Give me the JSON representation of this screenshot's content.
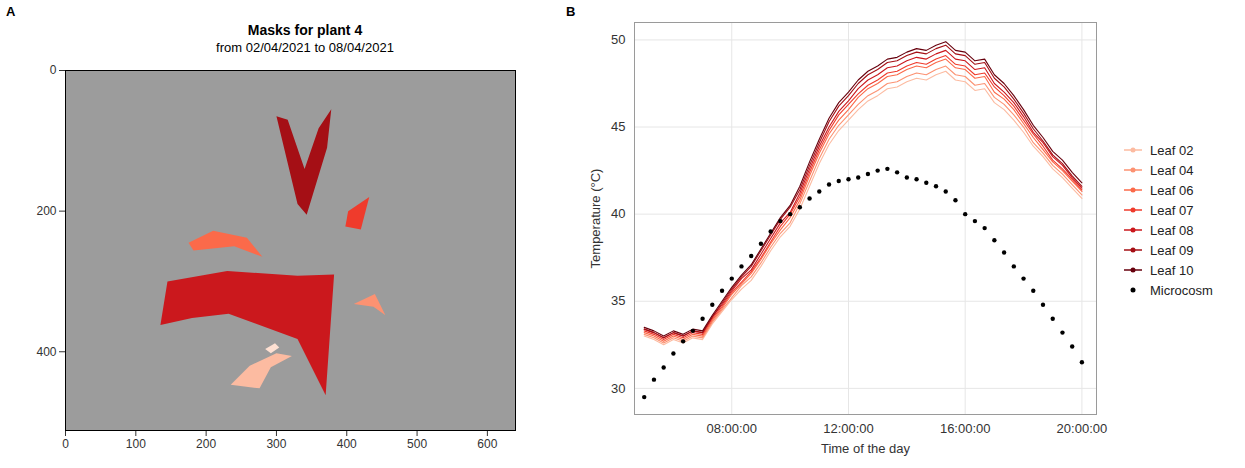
{
  "chart_data": [
    {
      "panel": "A",
      "type": "image",
      "title": "Masks for plant 4",
      "subtitle": "from 02/04/2021 to 08/04/2021",
      "xlim": [
        0,
        640
      ],
      "ylim": [
        512,
        0
      ],
      "xticks": [
        0,
        100,
        200,
        300,
        400,
        500,
        600
      ],
      "yticks": [
        0,
        200,
        400
      ],
      "masks": [
        {
          "color": "#a50f15",
          "points": [
            [
              300,
              65
            ],
            [
              316,
              70
            ],
            [
              340,
              140
            ],
            [
              360,
              82
            ],
            [
              378,
              55
            ],
            [
              372,
              110
            ],
            [
              343,
              205
            ],
            [
              330,
              190
            ]
          ]
        },
        {
          "color": "#ef3b2c",
          "points": [
            [
              402,
              200
            ],
            [
              432,
              180
            ],
            [
              420,
              226
            ],
            [
              398,
              222
            ]
          ]
        },
        {
          "color": "#fb6a4a",
          "points": [
            [
              175,
              245
            ],
            [
              210,
              228
            ],
            [
              258,
              238
            ],
            [
              280,
              265
            ],
            [
              240,
              250
            ],
            [
              182,
              256
            ]
          ]
        },
        {
          "color": "#cb181d",
          "points": [
            [
              135,
              362
            ],
            [
              145,
              300
            ],
            [
              230,
              285
            ],
            [
              330,
              292
            ],
            [
              382,
              290
            ],
            [
              370,
              462
            ],
            [
              330,
              382
            ],
            [
              232,
              346
            ],
            [
              180,
              352
            ]
          ]
        },
        {
          "color": "#fc9272",
          "points": [
            [
              410,
              332
            ],
            [
              440,
              318
            ],
            [
              455,
              348
            ],
            [
              438,
              336
            ]
          ]
        },
        {
          "color": "#fcbba1",
          "points": [
            [
              235,
              447
            ],
            [
              262,
              420
            ],
            [
              300,
              402
            ],
            [
              322,
              406
            ],
            [
              292,
              422
            ],
            [
              276,
              452
            ]
          ]
        },
        {
          "color": "#fee0d2",
          "points": [
            [
              284,
              396
            ],
            [
              298,
              388
            ],
            [
              304,
              394
            ],
            [
              292,
              402
            ]
          ]
        }
      ]
    },
    {
      "panel": "B",
      "type": "line",
      "x_label": "Time of the day",
      "y_label": "Temperature (°C)",
      "xlim": [
        "04:40:00",
        "20:30:00"
      ],
      "xticks": [
        "08:00:00",
        "12:00:00",
        "16:00:00",
        "20:00:00"
      ],
      "ylim": [
        28.5,
        51
      ],
      "yticks": [
        30,
        35,
        40,
        45,
        50
      ],
      "grid": true,
      "legend": "right",
      "x": [
        "05:00:00",
        "05:20:00",
        "05:40:00",
        "06:00:00",
        "06:20:00",
        "06:40:00",
        "07:00:00",
        "07:20:00",
        "07:40:00",
        "08:00:00",
        "08:20:00",
        "08:40:00",
        "09:00:00",
        "09:20:00",
        "09:40:00",
        "10:00:00",
        "10:20:00",
        "10:40:00",
        "11:00:00",
        "11:20:00",
        "11:40:00",
        "12:00:00",
        "12:20:00",
        "12:40:00",
        "13:00:00",
        "13:20:00",
        "13:40:00",
        "14:00:00",
        "14:20:00",
        "14:40:00",
        "15:00:00",
        "15:20:00",
        "15:40:00",
        "16:00:00",
        "16:20:00",
        "16:40:00",
        "17:00:00",
        "17:20:00",
        "17:40:00",
        "18:00:00",
        "18:20:00",
        "18:40:00",
        "19:00:00",
        "19:20:00",
        "19:40:00",
        "20:00:00"
      ],
      "series": [
        {
          "name": "Leaf 02",
          "color": "#fcbba1",
          "type": "line",
          "values": [
            33.0,
            32.8,
            32.5,
            32.8,
            32.6,
            32.9,
            32.8,
            33.7,
            34.4,
            35.1,
            35.7,
            36.2,
            37.0,
            37.9,
            38.7,
            39.3,
            40.3,
            41.6,
            42.9,
            44.0,
            44.8,
            45.4,
            46.0,
            46.5,
            46.8,
            47.2,
            47.3,
            47.6,
            47.8,
            47.7,
            48.0,
            48.2,
            47.7,
            47.6,
            47.1,
            47.2,
            46.4,
            46.0,
            45.4,
            44.7,
            43.9,
            43.3,
            42.6,
            42.1,
            41.5,
            40.9
          ]
        },
        {
          "name": "Leaf 04",
          "color": "#fc9272",
          "type": "line",
          "values": [
            33.1,
            32.9,
            32.6,
            32.9,
            32.7,
            33.0,
            32.9,
            33.8,
            34.5,
            35.2,
            35.9,
            36.4,
            37.2,
            38.1,
            38.9,
            39.5,
            40.6,
            41.9,
            43.2,
            44.3,
            45.1,
            45.7,
            46.3,
            46.8,
            47.1,
            47.5,
            47.6,
            47.9,
            48.1,
            48.0,
            48.3,
            48.5,
            48.0,
            47.9,
            47.4,
            47.5,
            46.7,
            46.3,
            45.7,
            45.0,
            44.1,
            43.5,
            42.8,
            42.3,
            41.7,
            41.1
          ]
        },
        {
          "name": "Leaf 06",
          "color": "#fb6a4a",
          "type": "line",
          "values": [
            33.2,
            33.0,
            32.7,
            33.0,
            32.8,
            33.1,
            33.0,
            33.9,
            34.6,
            35.4,
            36.0,
            36.6,
            37.4,
            38.3,
            39.1,
            39.8,
            40.8,
            42.2,
            43.5,
            44.6,
            45.4,
            46.0,
            46.7,
            47.2,
            47.5,
            47.9,
            48.0,
            48.3,
            48.5,
            48.4,
            48.7,
            48.9,
            48.4,
            48.3,
            47.8,
            47.9,
            47.0,
            46.6,
            46.0,
            45.2,
            44.4,
            43.7,
            43.0,
            42.5,
            41.9,
            41.3
          ]
        },
        {
          "name": "Leaf 07",
          "color": "#ef3b2c",
          "type": "line",
          "values": [
            33.3,
            33.1,
            32.8,
            33.1,
            32.9,
            33.2,
            33.1,
            34.0,
            34.7,
            35.5,
            36.1,
            36.7,
            37.5,
            38.4,
            39.3,
            40.0,
            41.0,
            42.4,
            43.7,
            44.8,
            45.7,
            46.3,
            46.9,
            47.4,
            47.7,
            48.1,
            48.2,
            48.5,
            48.7,
            48.6,
            48.9,
            49.1,
            48.6,
            48.5,
            48.0,
            48.1,
            47.3,
            46.8,
            46.2,
            45.4,
            44.6,
            43.9,
            43.1,
            42.6,
            42.0,
            41.4
          ]
        },
        {
          "name": "Leaf 08",
          "color": "#cb181d",
          "type": "line",
          "values": [
            33.4,
            33.2,
            32.9,
            33.2,
            33.0,
            33.3,
            33.2,
            34.1,
            34.8,
            35.6,
            36.3,
            36.8,
            37.7,
            38.6,
            39.5,
            40.1,
            41.2,
            42.6,
            43.9,
            45.0,
            45.9,
            46.5,
            47.2,
            47.7,
            48.0,
            48.4,
            48.5,
            48.8,
            49.0,
            48.9,
            49.2,
            49.4,
            48.9,
            48.8,
            48.3,
            48.4,
            47.5,
            47.0,
            46.4,
            45.6,
            44.7,
            44.1,
            43.3,
            42.8,
            42.1,
            41.5
          ]
        },
        {
          "name": "Leaf 09",
          "color": "#a50f15",
          "type": "line",
          "values": [
            33.4,
            33.2,
            32.9,
            33.2,
            33.0,
            33.3,
            33.2,
            34.1,
            34.9,
            35.7,
            36.4,
            37.0,
            37.9,
            38.8,
            39.7,
            40.4,
            41.4,
            42.8,
            44.1,
            45.3,
            46.2,
            46.8,
            47.5,
            48.0,
            48.3,
            48.7,
            48.8,
            49.1,
            49.3,
            49.2,
            49.5,
            49.7,
            49.2,
            49.1,
            48.6,
            48.7,
            47.8,
            47.3,
            46.6,
            45.8,
            44.9,
            44.2,
            43.4,
            42.9,
            42.2,
            41.6
          ]
        },
        {
          "name": "Leaf 10",
          "color": "#67000d",
          "type": "line",
          "values": [
            33.5,
            33.3,
            33.0,
            33.3,
            33.1,
            33.4,
            33.3,
            34.2,
            35.0,
            35.8,
            36.5,
            37.1,
            38.0,
            38.9,
            39.8,
            40.5,
            41.6,
            43.0,
            44.3,
            45.5,
            46.4,
            47.0,
            47.7,
            48.2,
            48.5,
            48.9,
            49.0,
            49.3,
            49.5,
            49.4,
            49.7,
            49.9,
            49.4,
            49.3,
            48.8,
            48.9,
            48.0,
            47.5,
            46.8,
            46.0,
            45.1,
            44.4,
            43.6,
            43.1,
            42.4,
            41.8
          ]
        },
        {
          "name": "Microcosm",
          "color": "#000000",
          "type": "scatter",
          "marker": "circle",
          "values": [
            29.5,
            30.5,
            31.2,
            32.0,
            32.7,
            33.3,
            34.0,
            34.8,
            35.6,
            36.3,
            37.0,
            37.6,
            38.3,
            39.0,
            39.6,
            40.0,
            40.4,
            40.9,
            41.3,
            41.7,
            41.9,
            42.0,
            42.1,
            42.3,
            42.5,
            42.6,
            42.4,
            42.1,
            42.0,
            41.8,
            41.6,
            41.3,
            40.8,
            40.0,
            39.6,
            39.2,
            38.5,
            37.8,
            37.0,
            36.3,
            35.6,
            34.8,
            34.0,
            33.2,
            32.4,
            31.5
          ]
        }
      ]
    }
  ]
}
